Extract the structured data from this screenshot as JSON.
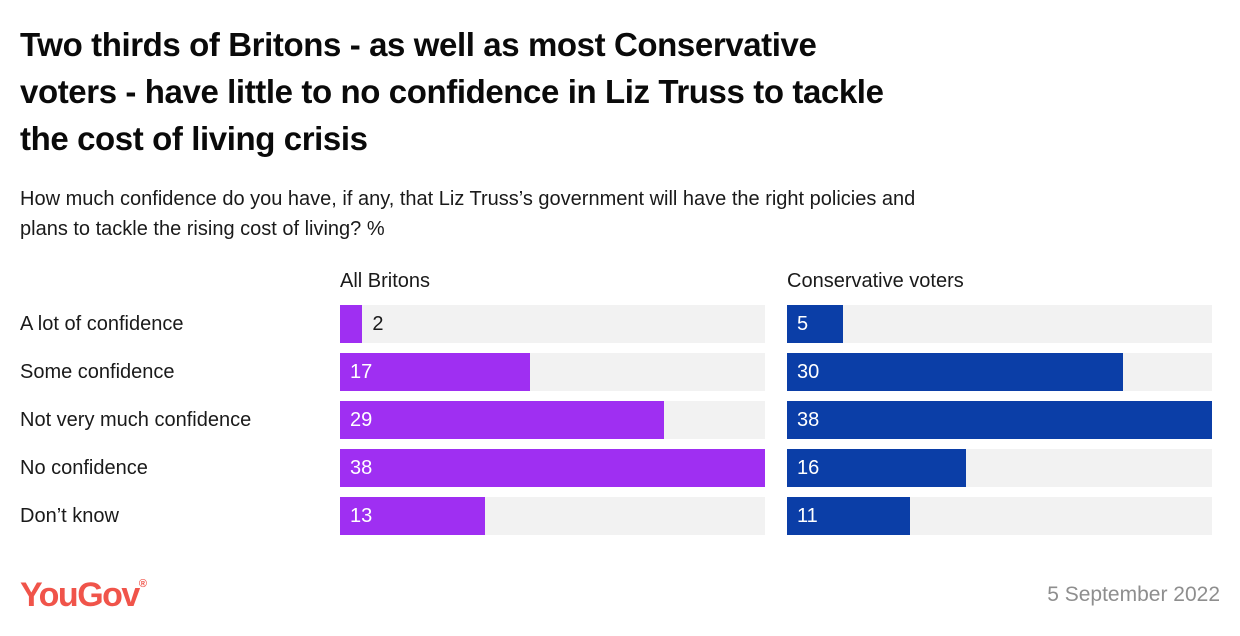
{
  "header": {
    "title_lines": [
      "Two thirds of Britons - as well as most Conservative",
      "voters - have little to no confidence in Liz Truss to tackle",
      "the cost of living crisis"
    ],
    "subtitle_lines": [
      "How much confidence do you have, if any, that Liz Truss’s government will have the right policies and",
      "plans to tackle the rising cost of living? %"
    ]
  },
  "chart_data": {
    "type": "bar",
    "orientation": "horizontal",
    "title": "How much confidence do you have, if any, that Liz Truss’s government will have the right policies and plans to tackle the rising cost of living? %",
    "categories": [
      "A lot of confidence",
      "Some confidence",
      "Not very much confidence",
      "No confidence",
      "Don’t know"
    ],
    "series": [
      {
        "name": "All Britons",
        "color": "#9F2FF2",
        "values": [
          2,
          17,
          29,
          38,
          13
        ]
      },
      {
        "name": "Conservative voters",
        "color": "#0B3EA7",
        "values": [
          5,
          30,
          38,
          16,
          11
        ]
      }
    ],
    "xlim": [
      0,
      38
    ],
    "unit": "%",
    "grid": false,
    "legend_position": "column-headers",
    "track_color": "#F2F2F2",
    "value_label_position": "inside-start"
  },
  "footer": {
    "logo_text": "YouGov",
    "registered_mark": "®",
    "logo_color": "#F0544A",
    "date": "5 September 2022",
    "date_color": "#8E8E8E"
  }
}
